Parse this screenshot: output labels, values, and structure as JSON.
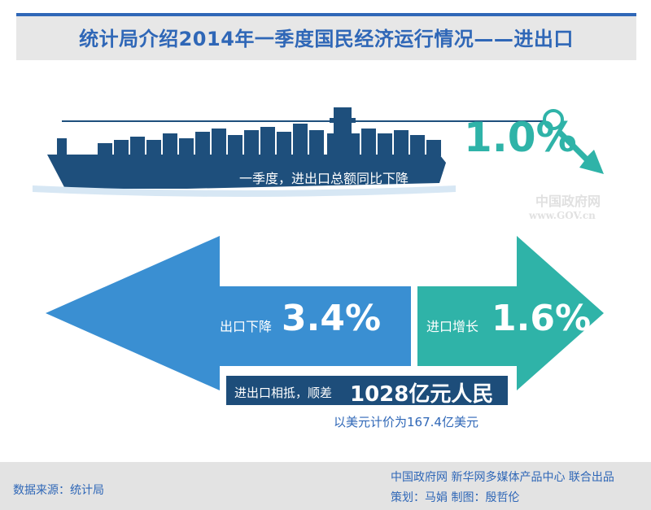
{
  "header": {
    "title": "统计局介绍2014年一季度国民经济运行情况——进出口"
  },
  "total": {
    "label": "一季度，进出口总额同比下降",
    "value": "1.0%"
  },
  "watermark": {
    "cn": "中国政府网",
    "en": "www.GOV.cn"
  },
  "exports": {
    "label": "出口下降",
    "value": "3.4%"
  },
  "imports": {
    "label": "进口增长",
    "value": "1.6%"
  },
  "balance": {
    "label": "进出口相抵，顺差",
    "value": "1028亿元人民币",
    "usd_note": "以美元计价为167.4亿美元"
  },
  "footer": {
    "source": "数据来源：统计局",
    "credit_line1": "中国政府网 新华网多媒体产品中心 联合出品",
    "credit_line2": "策划：马娟  制图：殷哲伦"
  },
  "colors": {
    "title_blue": "#2f67b7",
    "ship_navy": "#1e4f7c",
    "export_blue": "#3a8fd2",
    "import_teal": "#2fb3a8",
    "balance_navy": "#1d4d7a"
  }
}
